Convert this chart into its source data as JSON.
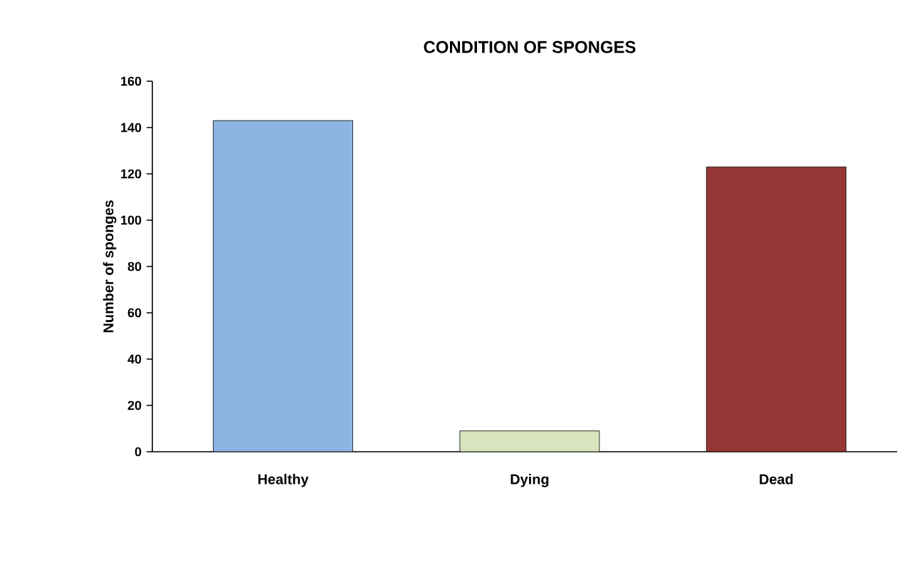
{
  "chart_data": {
    "type": "bar",
    "title": "CONDITION OF SPONGES",
    "ylabel": "Number of sponges",
    "categories": [
      "Healthy",
      "Dying",
      "Dead"
    ],
    "values": [
      143,
      9,
      123
    ],
    "colors": [
      "#8eb4e3",
      "#d7e4bd",
      "#953735"
    ],
    "ylim": [
      0,
      160
    ],
    "yticks": [
      0,
      20,
      40,
      60,
      80,
      100,
      120,
      140,
      160
    ],
    "grid": false
  }
}
